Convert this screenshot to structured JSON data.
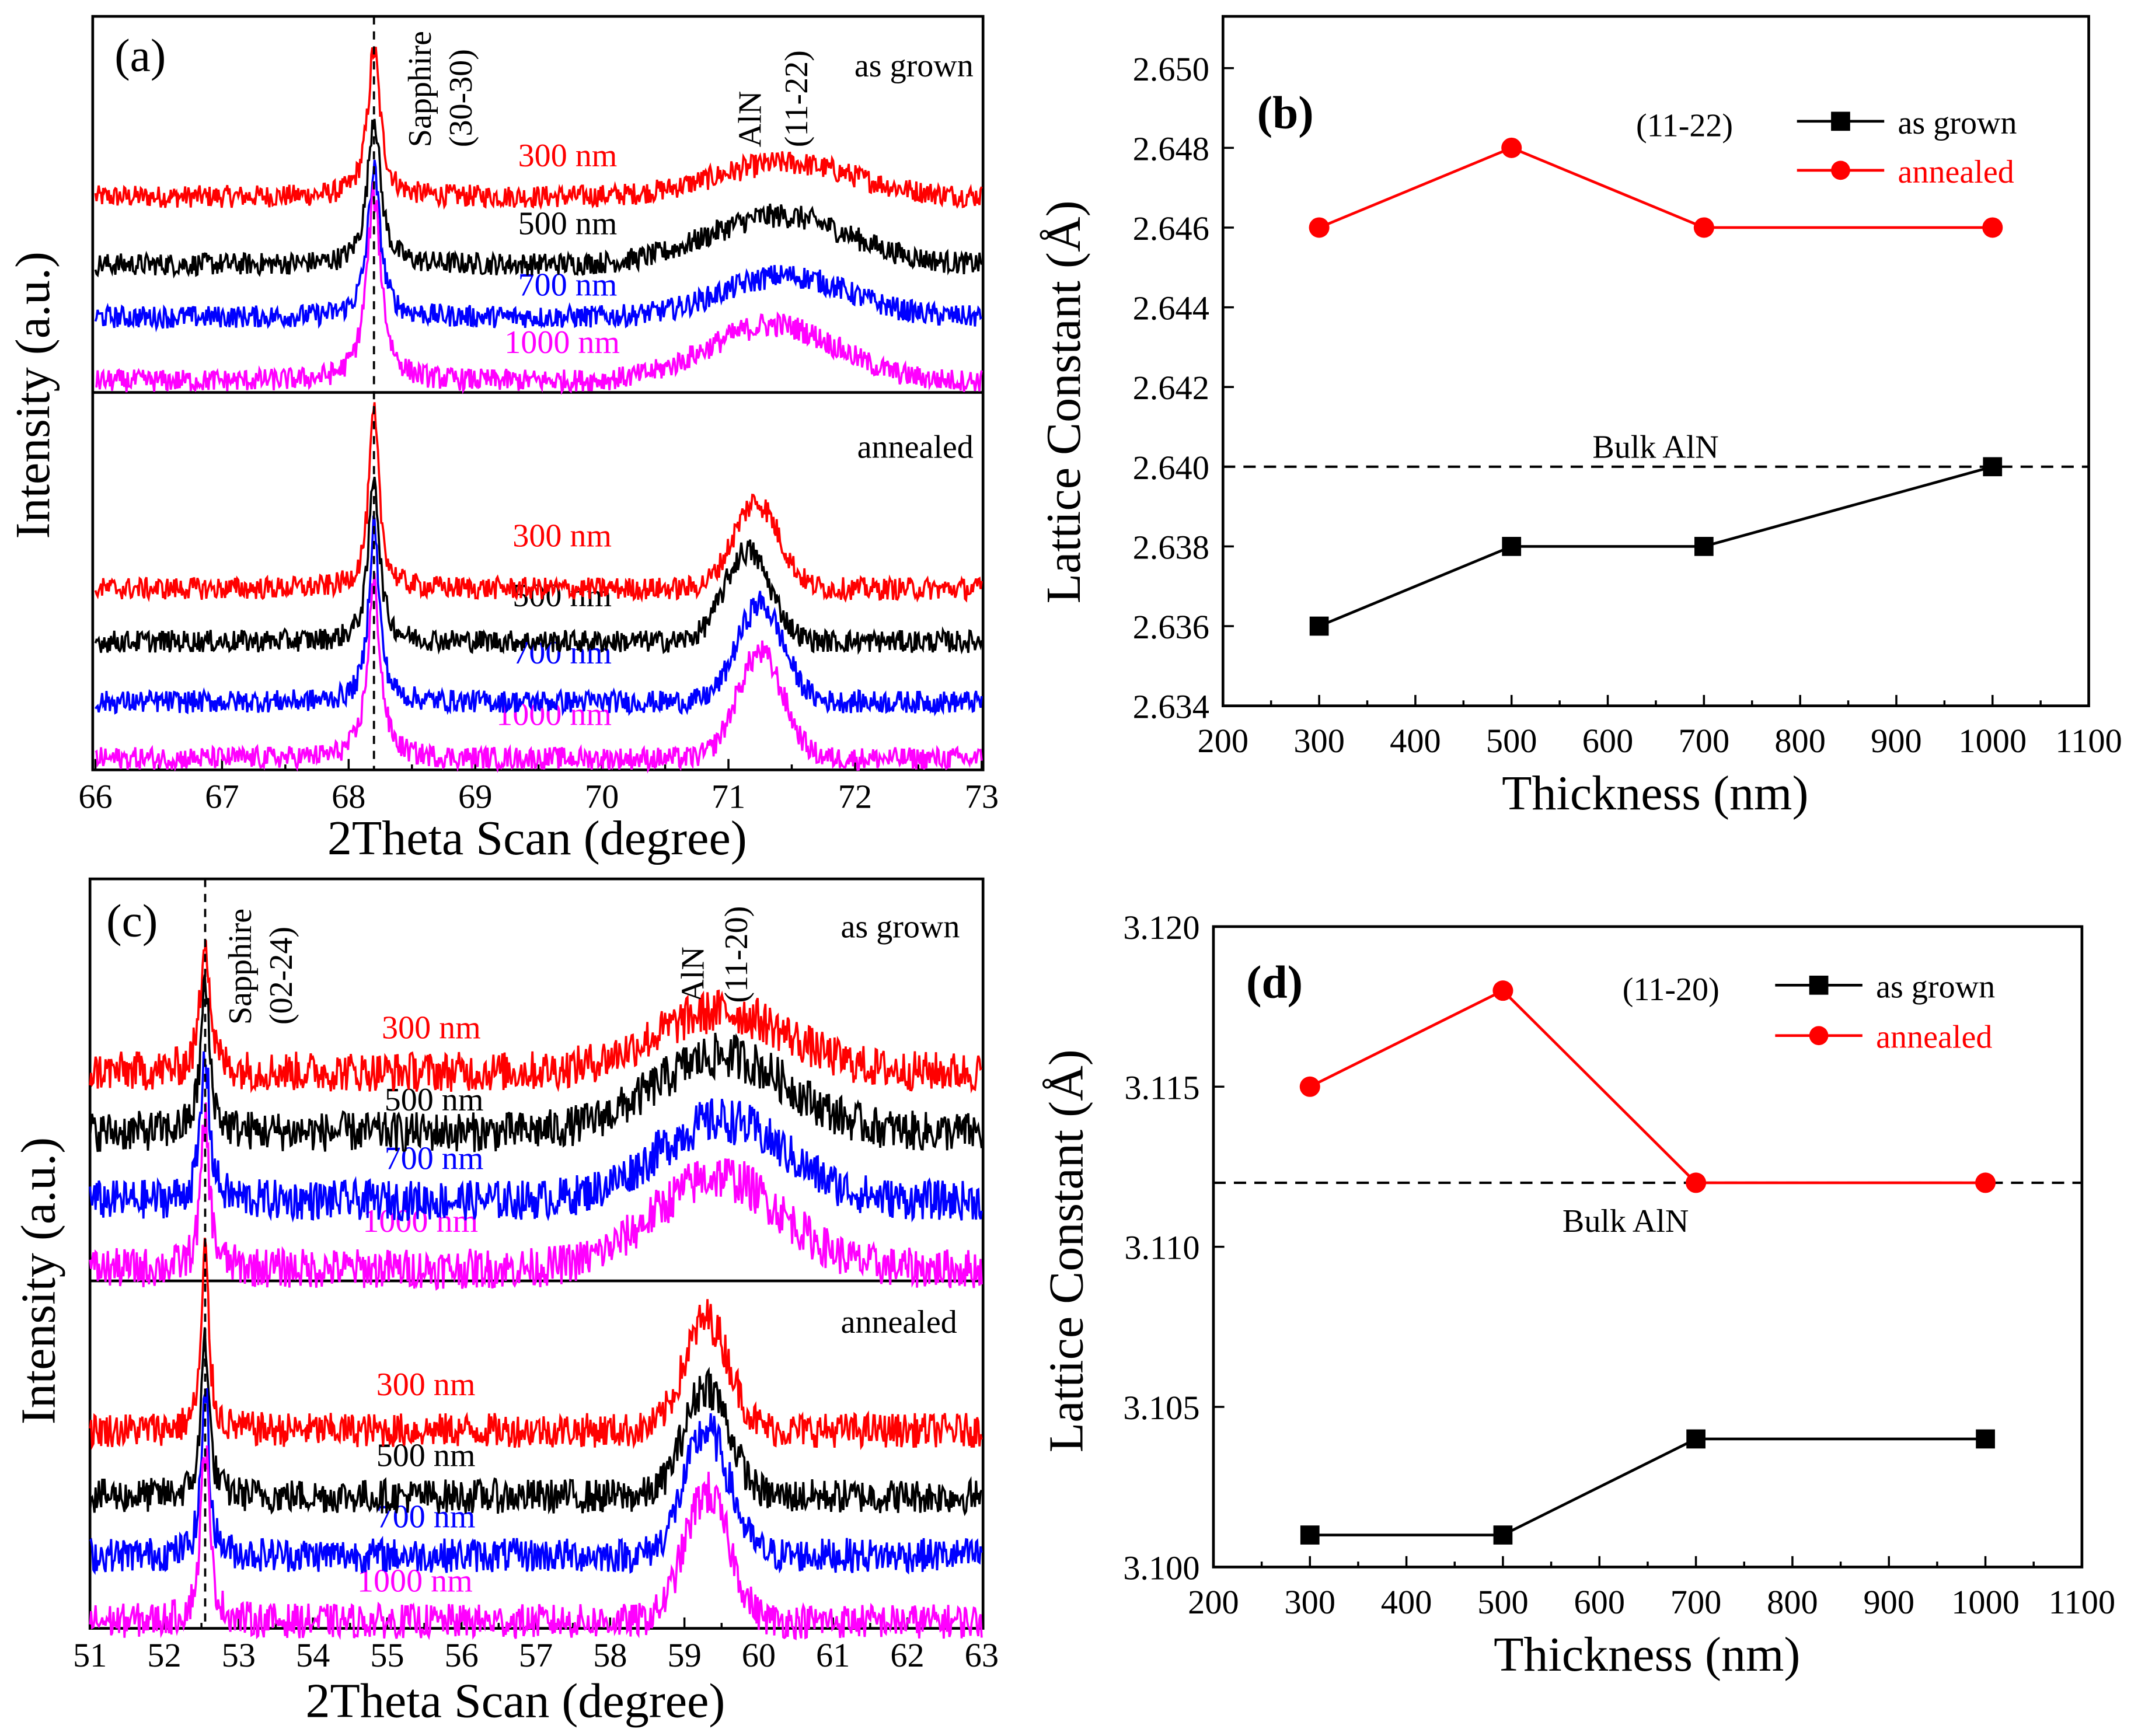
{
  "chart_data": [
    {
      "type": "line",
      "panel": "(a)",
      "xlabel": "2Theta Scan (degree)",
      "ylabel": "Intensity (a.u.)",
      "xlim": [
        66,
        73
      ],
      "xticks": [
        66,
        67,
        68,
        69,
        70,
        71,
        72,
        73
      ],
      "ylim": [
        0,
        100
      ],
      "reference_line_x": 68.2,
      "peak_labels": [
        {
          "line1": "Sapphire",
          "line2": "(30-30)"
        },
        {
          "line1": "AlN",
          "line2": "(11-22)"
        }
      ],
      "subplots": [
        {
          "label": "as grown",
          "series": [
            {
              "name": "300 nm",
              "color": "#ff0000",
              "baseline": 52,
              "noise": 3,
              "peaks": [
                {
                  "center": 68.2,
                  "amp": 39,
                  "width": 0.06,
                  "shape": "lorentz"
                },
                {
                  "center": 71.45,
                  "amp": 9,
                  "width": 0.55,
                  "shape": "gauss"
                }
              ]
            },
            {
              "name": "500 nm",
              "color": "#000000",
              "baseline": 34,
              "noise": 3,
              "peaks": [
                {
                  "center": 68.2,
                  "amp": 40,
                  "width": 0.06,
                  "shape": "lorentz"
                },
                {
                  "center": 71.4,
                  "amp": 13,
                  "width": 0.55,
                  "shape": "gauss"
                }
              ]
            },
            {
              "name": "700 nm",
              "color": "#0000ff",
              "baseline": 20,
              "noise": 3,
              "peaks": [
                {
                  "center": 68.2,
                  "amp": 39,
                  "width": 0.06,
                  "shape": "lorentz"
                },
                {
                  "center": 71.45,
                  "amp": 11,
                  "width": 0.5,
                  "shape": "gauss"
                }
              ]
            },
            {
              "name": "1000 nm",
              "color": "#ff00ff",
              "baseline": 3,
              "noise": 3,
              "peaks": [
                {
                  "center": 68.2,
                  "amp": 49,
                  "width": 0.07,
                  "shape": "lorentz"
                },
                {
                  "center": 71.35,
                  "amp": 15,
                  "width": 0.5,
                  "shape": "gauss"
                }
              ]
            }
          ]
        },
        {
          "label": "annealed",
          "series": [
            {
              "name": "300 nm",
              "color": "#ff0000",
              "baseline": 48,
              "noise": 3,
              "peaks": [
                {
                  "center": 68.2,
                  "amp": 46,
                  "width": 0.05,
                  "shape": "lorentz"
                },
                {
                  "center": 71.22,
                  "amp": 23,
                  "width": 0.18,
                  "shape": "gauss"
                }
              ]
            },
            {
              "name": "500 nm",
              "color": "#000000",
              "baseline": 34,
              "noise": 3,
              "peaks": [
                {
                  "center": 68.2,
                  "amp": 45,
                  "width": 0.05,
                  "shape": "lorentz"
                },
                {
                  "center": 71.15,
                  "amp": 24,
                  "width": 0.18,
                  "shape": "gauss"
                }
              ]
            },
            {
              "name": "700 nm",
              "color": "#0000ff",
              "baseline": 18,
              "noise": 3,
              "peaks": [
                {
                  "center": 68.2,
                  "amp": 47,
                  "width": 0.05,
                  "shape": "lorentz"
                },
                {
                  "center": 71.25,
                  "amp": 26,
                  "width": 0.18,
                  "shape": "gauss"
                }
              ]
            },
            {
              "name": "1000 nm",
              "color": "#ff00ff",
              "baseline": 3,
              "noise": 3,
              "peaks": [
                {
                  "center": 68.2,
                  "amp": 46,
                  "width": 0.06,
                  "shape": "lorentz"
                },
                {
                  "center": 71.25,
                  "amp": 28,
                  "width": 0.18,
                  "shape": "gauss"
                }
              ]
            }
          ]
        }
      ]
    },
    {
      "type": "line",
      "panel": "(b)",
      "xlabel": "Thickness (nm)",
      "ylabel": "Lattice Constant (Å)",
      "annotation": "(11-22)",
      "xlim": [
        200,
        1100
      ],
      "xticks": [
        200,
        300,
        400,
        500,
        600,
        700,
        800,
        900,
        1000,
        1100
      ],
      "ylim": [
        2.634,
        2.65
      ],
      "yticks": [
        "2.634",
        "2.636",
        "2.638",
        "2.640",
        "2.642",
        "2.644",
        "2.646",
        "2.648",
        "2.650"
      ],
      "reference": {
        "label": "Bulk AlN",
        "y": 2.64
      },
      "legend": "top-right",
      "x": [
        300,
        500,
        700,
        1000
      ],
      "series": [
        {
          "name": "as grown",
          "color": "#000000",
          "marker": "square",
          "values": [
            2.636,
            2.638,
            2.638,
            2.64
          ]
        },
        {
          "name": "annealed",
          "color": "#ff0000",
          "marker": "circle",
          "values": [
            2.646,
            2.648,
            2.646,
            2.646
          ]
        }
      ]
    },
    {
      "type": "line",
      "panel": "(c)",
      "xlabel": "2Theta Scan (degree)",
      "ylabel": "Intensity (a.u.)",
      "xlim": [
        51,
        63
      ],
      "xticks": [
        51,
        52,
        53,
        54,
        55,
        56,
        57,
        58,
        59,
        60,
        61,
        62,
        63
      ],
      "ylim": [
        0,
        100
      ],
      "reference_line_x": 52.55,
      "peak_labels": [
        {
          "line1": "Sapphire",
          "line2": "(02-24)"
        },
        {
          "line1": "AlN",
          "line2": "(11-20)"
        }
      ],
      "subplots": [
        {
          "label": "as grown",
          "series": [
            {
              "name": "300 nm",
              "color": "#ff0000",
              "baseline": 52,
              "noise": 5,
              "peaks": [
                {
                  "center": 52.55,
                  "amp": 36,
                  "width": 0.07,
                  "shape": "lorentz"
                },
                {
                  "center": 59.5,
                  "amp": 15,
                  "width": 0.9,
                  "shape": "gauss"
                }
              ]
            },
            {
              "name": "500 nm",
              "color": "#000000",
              "baseline": 37,
              "noise": 5,
              "peaks": [
                {
                  "center": 52.55,
                  "amp": 37,
                  "width": 0.07,
                  "shape": "lorentz"
                },
                {
                  "center": 59.5,
                  "amp": 19,
                  "width": 0.9,
                  "shape": "gauss"
                }
              ]
            },
            {
              "name": "700 nm",
              "color": "#0000ff",
              "baseline": 20,
              "noise": 5,
              "peaks": [
                {
                  "center": 52.55,
                  "amp": 36,
                  "width": 0.07,
                  "shape": "lorentz"
                },
                {
                  "center": 59.5,
                  "amp": 20,
                  "width": 0.85,
                  "shape": "gauss"
                }
              ]
            },
            {
              "name": "1000 nm",
              "color": "#ff00ff",
              "baseline": 3,
              "noise": 5,
              "peaks": [
                {
                  "center": 52.55,
                  "amp": 37,
                  "width": 0.07,
                  "shape": "lorentz"
                },
                {
                  "center": 59.45,
                  "amp": 23,
                  "width": 0.85,
                  "shape": "gauss"
                }
              ]
            }
          ]
        },
        {
          "label": "annealed",
          "series": [
            {
              "name": "300 nm",
              "color": "#ff0000",
              "baseline": 57,
              "noise": 5,
              "peaks": [
                {
                  "center": 52.55,
                  "amp": 51,
                  "width": 0.06,
                  "shape": "lorentz"
                },
                {
                  "center": 59.3,
                  "amp": 32,
                  "width": 0.3,
                  "shape": "gauss"
                }
              ]
            },
            {
              "name": "500 nm",
              "color": "#000000",
              "baseline": 38,
              "noise": 5,
              "peaks": [
                {
                  "center": 52.55,
                  "amp": 48,
                  "width": 0.06,
                  "shape": "lorentz"
                },
                {
                  "center": 59.3,
                  "amp": 32,
                  "width": 0.3,
                  "shape": "gauss"
                }
              ]
            },
            {
              "name": "700 nm",
              "color": "#0000ff",
              "baseline": 21,
              "noise": 5,
              "peaks": [
                {
                  "center": 52.55,
                  "amp": 49,
                  "width": 0.06,
                  "shape": "lorentz"
                },
                {
                  "center": 59.3,
                  "amp": 36,
                  "width": 0.3,
                  "shape": "gauss"
                }
              ]
            },
            {
              "name": "1000 nm",
              "color": "#ff00ff",
              "baseline": 2,
              "noise": 5,
              "peaks": [
                {
                  "center": 52.55,
                  "amp": 51,
                  "width": 0.07,
                  "shape": "lorentz"
                },
                {
                  "center": 59.3,
                  "amp": 37,
                  "width": 0.3,
                  "shape": "gauss"
                }
              ]
            }
          ]
        }
      ]
    },
    {
      "type": "line",
      "panel": "(d)",
      "xlabel": "Thickness (nm)",
      "ylabel": "Lattice Constant (Å)",
      "annotation": "(11-20)",
      "xlim": [
        200,
        1100
      ],
      "xticks": [
        200,
        300,
        400,
        500,
        600,
        700,
        800,
        900,
        1000,
        1100
      ],
      "ylim": [
        3.1,
        3.12
      ],
      "yticks": [
        "3.100",
        "3.105",
        "3.110",
        "3.115",
        "3.120"
      ],
      "reference": {
        "label": "Bulk AlN",
        "y": 3.112
      },
      "legend": "top-right",
      "x": [
        300,
        500,
        700,
        1000
      ],
      "series": [
        {
          "name": "as grown",
          "color": "#000000",
          "marker": "square",
          "values": [
            3.101,
            3.101,
            3.104,
            3.104
          ]
        },
        {
          "name": "annealed",
          "color": "#ff0000",
          "marker": "circle",
          "values": [
            3.115,
            3.118,
            3.112,
            3.112
          ]
        }
      ]
    }
  ]
}
